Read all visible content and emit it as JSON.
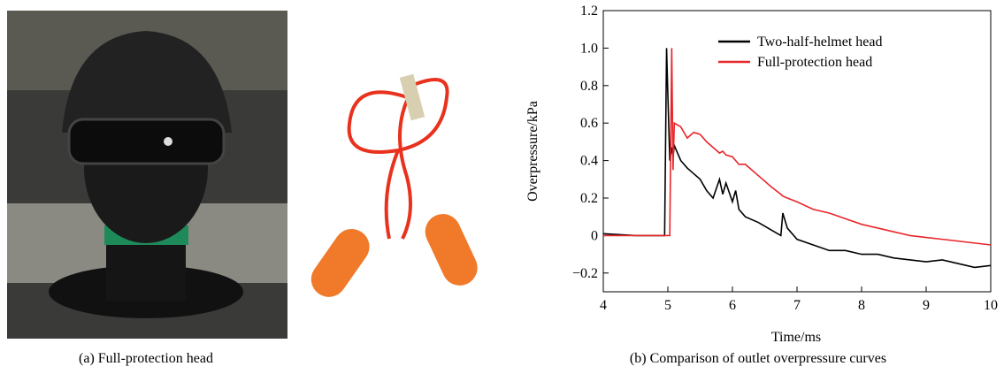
{
  "panel_a_caption": "(a) Full-protection head",
  "chart_data": {
    "type": "line",
    "caption": "(b) Comparison of outlet overpressure curves",
    "x_label": "Time/ms",
    "y_label": "Overpressure/kPa",
    "xlim": [
      4,
      10
    ],
    "xticks": [
      4,
      5,
      6,
      7,
      8,
      9,
      10
    ],
    "ylim": [
      -0.3,
      1.2
    ],
    "yticks": [
      {
        "value": -0.2,
        "label": "−0.2"
      },
      0,
      0.2,
      0.4,
      0.6,
      0.8,
      {
        "value": 1.0,
        "label": "1.0"
      },
      1.2
    ],
    "legend": "top-center",
    "x": [
      4,
      4.5,
      4.95,
      4.98,
      5.0,
      5.03,
      5.06,
      5.08,
      5.1,
      5.2,
      5.3,
      5.4,
      5.5,
      5.6,
      5.7,
      5.8,
      5.85,
      5.9,
      6.0,
      6.05,
      6.1,
      6.2,
      6.4,
      6.6,
      6.75,
      6.78,
      6.85,
      7.0,
      7.25,
      7.5,
      7.75,
      8.0,
      8.25,
      8.5,
      8.75,
      9.0,
      9.25,
      9.5,
      9.75,
      10.0
    ],
    "series": [
      {
        "name": "Two-half-helmet head",
        "color": "#000000",
        "values": [
          0.01,
          0,
          0,
          1.0,
          0.75,
          0.4,
          0.47,
          0.42,
          0.48,
          0.4,
          0.36,
          0.33,
          0.3,
          0.24,
          0.2,
          0.3,
          0.22,
          0.28,
          0.18,
          0.24,
          0.14,
          0.1,
          0.07,
          0.03,
          0.0,
          0.12,
          0.04,
          -0.02,
          -0.05,
          -0.08,
          -0.08,
          -0.1,
          -0.1,
          -0.12,
          -0.13,
          -0.14,
          -0.13,
          -0.15,
          -0.17,
          -0.16
        ]
      },
      {
        "name": "Full-protection head",
        "color": "#e8262a",
        "values": [
          0,
          0,
          0,
          0,
          0,
          0,
          1.0,
          0.35,
          0.6,
          0.58,
          0.52,
          0.55,
          0.54,
          0.5,
          0.47,
          0.44,
          0.45,
          0.43,
          0.42,
          0.4,
          0.38,
          0.38,
          0.32,
          0.26,
          0.22,
          0.21,
          0.2,
          0.18,
          0.14,
          0.12,
          0.09,
          0.06,
          0.04,
          0.02,
          0.0,
          -0.01,
          -0.02,
          -0.03,
          -0.04,
          -0.05
        ]
      }
    ]
  }
}
